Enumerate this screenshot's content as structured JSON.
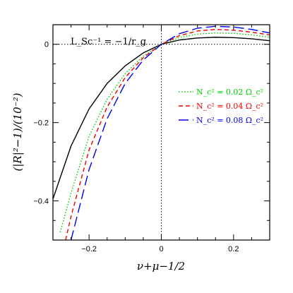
{
  "chart_data": {
    "type": "line",
    "xlabel": "ν+μ−1/2",
    "ylabel": "(|R|²−1)/(10⁻²)",
    "xlim": [
      -0.3,
      0.3
    ],
    "ylim": [
      -0.5,
      0.05
    ],
    "xticks": [
      -0.2,
      0,
      0.2
    ],
    "yticks": [
      0,
      -0.2,
      -0.4
    ],
    "xtick_labels": [
      "−0.2",
      "0",
      "0.2"
    ],
    "ytick_labels": [
      "0",
      "−0.2",
      "−0.4"
    ],
    "annotation": "L_Sc⁻¹ = −1/r_g",
    "grid": false,
    "legend_position": "right",
    "series": [
      {
        "name": "",
        "color": "#000000",
        "dash": "solid",
        "x": [
          -0.3,
          -0.25,
          -0.2,
          -0.15,
          -0.1,
          -0.05,
          0.0,
          0.05,
          0.1,
          0.15,
          0.2,
          0.25,
          0.3
        ],
        "y": [
          -0.395,
          -0.26,
          -0.165,
          -0.1,
          -0.055,
          -0.022,
          0.0,
          0.011,
          0.016,
          0.018,
          0.017,
          0.014,
          0.009
        ]
      },
      {
        "name": "N_c² = 0.02 Ω_c²",
        "color": "#00cc00",
        "dash": "dotted",
        "x": [
          -0.28,
          -0.25,
          -0.2,
          -0.15,
          -0.1,
          -0.05,
          0.0,
          0.05,
          0.1,
          0.15,
          0.2,
          0.25,
          0.3
        ],
        "y": [
          -0.48,
          -0.38,
          -0.235,
          -0.14,
          -0.075,
          -0.03,
          0.0,
          0.017,
          0.026,
          0.029,
          0.028,
          0.024,
          0.018
        ]
      },
      {
        "name": "N_c² = 0.04 Ω_c²",
        "color": "#ee0000",
        "dash": "dashed",
        "x": [
          -0.265,
          -0.25,
          -0.2,
          -0.15,
          -0.1,
          -0.05,
          0.0,
          0.05,
          0.1,
          0.15,
          0.2,
          0.25,
          0.3
        ],
        "y": [
          -0.5,
          -0.44,
          -0.27,
          -0.16,
          -0.085,
          -0.034,
          0.0,
          0.022,
          0.034,
          0.038,
          0.036,
          0.031,
          0.024
        ]
      },
      {
        "name": "N_c² = 0.08 Ω_c²",
        "color": "#0000ee",
        "dash": "longdash",
        "x": [
          -0.25,
          -0.2,
          -0.15,
          -0.1,
          -0.05,
          0.0,
          0.05,
          0.1,
          0.15,
          0.2,
          0.25,
          0.3
        ],
        "y": [
          -0.5,
          -0.32,
          -0.19,
          -0.1,
          -0.04,
          0.0,
          0.027,
          0.041,
          0.046,
          0.044,
          0.038,
          0.029
        ]
      }
    ]
  }
}
